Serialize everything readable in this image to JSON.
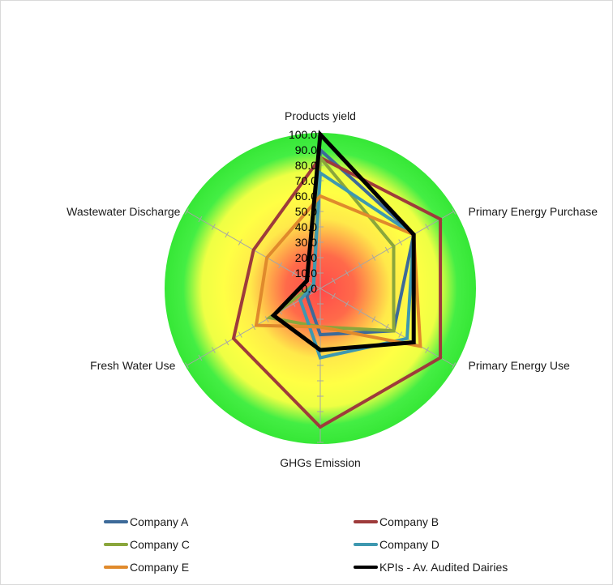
{
  "chart_data": {
    "type": "radar",
    "axes": [
      "Products yield",
      "Primary Energy Purchase",
      "Primary Energy Use",
      "GHGs Emission",
      "Fresh Water Use",
      "Wastewater Discharge"
    ],
    "tick_labels": [
      "0.0",
      "10.0",
      "20.0",
      "30.0",
      "40.0",
      "50.0",
      "60.0",
      "70.0",
      "80.0",
      "90.0",
      "100.0"
    ],
    "rlim": [
      0,
      100
    ],
    "background": "radial gradient red (center) to yellow to green (edge)",
    "legend_position": "bottom",
    "series": [
      {
        "name": "Company A",
        "color": "#3d6a99",
        "values": [
          90,
          70,
          55,
          30,
          10,
          5
        ]
      },
      {
        "name": "Company B",
        "color": "#9e3b3b",
        "values": [
          85,
          90,
          90,
          90,
          65,
          50
        ]
      },
      {
        "name": "Company C",
        "color": "#8aa63c",
        "values": [
          85,
          55,
          55,
          25,
          38,
          5
        ]
      },
      {
        "name": "Company D",
        "color": "#3e98b0",
        "values": [
          75,
          70,
          65,
          45,
          15,
          5
        ]
      },
      {
        "name": "Company E",
        "color": "#e08a2c",
        "values": [
          60,
          70,
          75,
          25,
          48,
          40
        ]
      },
      {
        "name": "KPIs - Av. Audited Dairies",
        "color": "#000000",
        "values": [
          100,
          70,
          70,
          40,
          35,
          10
        ]
      }
    ]
  }
}
